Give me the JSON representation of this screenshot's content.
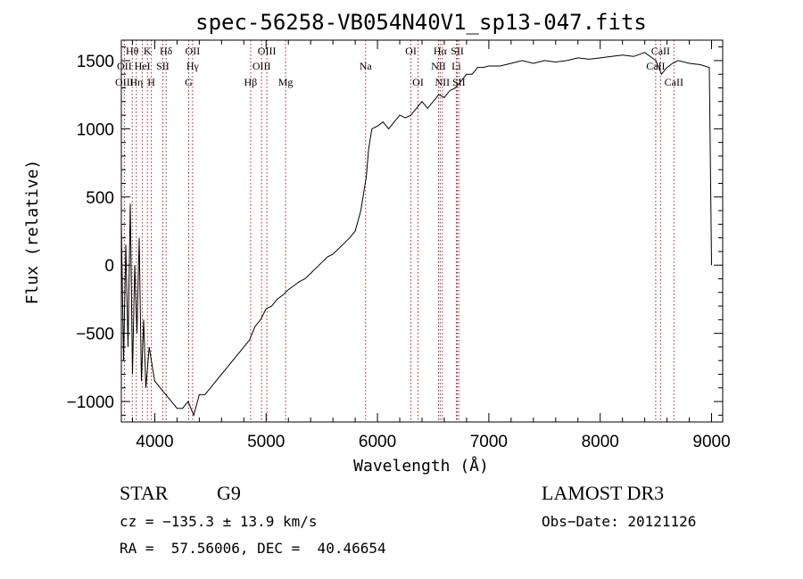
{
  "chart_data": {
    "type": "line",
    "title": "spec-56258-VB054N40V1_sp13-047.fits",
    "xlabel": "Wavelength (Å)",
    "ylabel": "Flux (relative)",
    "xlim": [
      3700,
      9100
    ],
    "ylim": [
      -1150,
      1650
    ],
    "xticks": [
      4000,
      5000,
      6000,
      7000,
      8000,
      9000
    ],
    "yticks": [
      -1000,
      -500,
      0,
      500,
      1000,
      1500
    ],
    "series": [
      {
        "name": "flux",
        "x": [
          3700,
          3720,
          3740,
          3760,
          3780,
          3800,
          3820,
          3840,
          3860,
          3880,
          3900,
          3920,
          3950,
          3980,
          4000,
          4050,
          4100,
          4150,
          4200,
          4250,
          4300,
          4350,
          4400,
          4450,
          4500,
          4550,
          4600,
          4650,
          4700,
          4750,
          4800,
          4850,
          4900,
          4950,
          5000,
          5050,
          5100,
          5150,
          5200,
          5250,
          5300,
          5350,
          5400,
          5450,
          5500,
          5550,
          5600,
          5650,
          5700,
          5750,
          5800,
          5850,
          5880,
          5900,
          5920,
          5950,
          6000,
          6050,
          6100,
          6150,
          6200,
          6250,
          6300,
          6350,
          6400,
          6450,
          6500,
          6550,
          6600,
          6650,
          6700,
          6750,
          6800,
          6850,
          6900,
          6950,
          7000,
          7100,
          7200,
          7300,
          7400,
          7500,
          7600,
          7700,
          7800,
          7900,
          8000,
          8100,
          8200,
          8300,
          8400,
          8500,
          8550,
          8600,
          8650,
          8700,
          8800,
          8900,
          8980,
          9000
        ],
        "y": [
          300,
          -700,
          150,
          -600,
          450,
          -800,
          0,
          -500,
          200,
          -850,
          -400,
          -900,
          -600,
          -750,
          -850,
          -900,
          -950,
          -1000,
          -1050,
          -1050,
          -1000,
          -1100,
          -950,
          -950,
          -900,
          -850,
          -800,
          -750,
          -700,
          -650,
          -600,
          -550,
          -450,
          -400,
          -320,
          -300,
          -250,
          -220,
          -180,
          -150,
          -120,
          -100,
          -60,
          -20,
          20,
          60,
          80,
          120,
          160,
          200,
          250,
          400,
          550,
          650,
          850,
          1000,
          1020,
          1050,
          1000,
          1050,
          1100,
          1080,
          1100,
          1150,
          1200,
          1150,
          1200,
          1250,
          1230,
          1280,
          1300,
          1350,
          1400,
          1400,
          1450,
          1450,
          1460,
          1460,
          1480,
          1500,
          1480,
          1500,
          1490,
          1500,
          1520,
          1510,
          1520,
          1530,
          1540,
          1530,
          1560,
          1500,
          1400,
          1450,
          1480,
          1500,
          1480,
          1470,
          1450,
          0
        ]
      }
    ],
    "emission_lines": [
      {
        "label": "Hθ",
        "wavelength": 3798,
        "row": 1
      },
      {
        "label": "K",
        "wavelength": 3934,
        "row": 1
      },
      {
        "label": "Hδ",
        "wavelength": 4102,
        "row": 1
      },
      {
        "label": "OII",
        "wavelength": 4340,
        "row": 1
      },
      {
        "label": "OIII",
        "wavelength": 5007,
        "row": 1
      },
      {
        "label": "OI",
        "wavelength": 6300,
        "row": 1
      },
      {
        "label": "Hα",
        "wavelength": 6563,
        "row": 1
      },
      {
        "label": "SII",
        "wavelength": 6717,
        "row": 1
      },
      {
        "label": "CaII",
        "wavelength": 8542,
        "row": 1
      },
      {
        "label": "OII",
        "wavelength": 3727,
        "row": 2
      },
      {
        "label": "HeI",
        "wavelength": 3889,
        "row": 2
      },
      {
        "label": "SII",
        "wavelength": 4072,
        "row": 2
      },
      {
        "label": "Hγ",
        "wavelength": 4340,
        "row": 2
      },
      {
        "label": "OIII",
        "wavelength": 4959,
        "row": 2
      },
      {
        "label": "Na",
        "wavelength": 5893,
        "row": 2
      },
      {
        "label": "NII",
        "wavelength": 6548,
        "row": 2
      },
      {
        "label": "Li",
        "wavelength": 6708,
        "row": 2
      },
      {
        "label": "CaII",
        "wavelength": 8498,
        "row": 2
      },
      {
        "label": "OIII",
        "wavelength": 3727,
        "row": 3
      },
      {
        "label": "Hη",
        "wavelength": 3835,
        "row": 3
      },
      {
        "label": "H",
        "wavelength": 3969,
        "row": 3
      },
      {
        "label": "G",
        "wavelength": 4305,
        "row": 3
      },
      {
        "label": "Hβ",
        "wavelength": 4861,
        "row": 3
      },
      {
        "label": "Mg",
        "wavelength": 5175,
        "row": 3
      },
      {
        "label": "OI",
        "wavelength": 6364,
        "row": 3
      },
      {
        "label": "NII",
        "wavelength": 6583,
        "row": 3
      },
      {
        "label": "SII",
        "wavelength": 6731,
        "row": 3
      },
      {
        "label": "CaII",
        "wavelength": 8662,
        "row": 3
      }
    ]
  },
  "info": {
    "class_label": "STAR",
    "subclass": "G9",
    "survey": "LAMOST DR3",
    "cz_text": "cz = −135.3 ± 13.9 km/s",
    "obs_date_text": "Obs−Date: 20121126",
    "coords_text": "RA =  57.56006, DEC =  40.46654"
  }
}
